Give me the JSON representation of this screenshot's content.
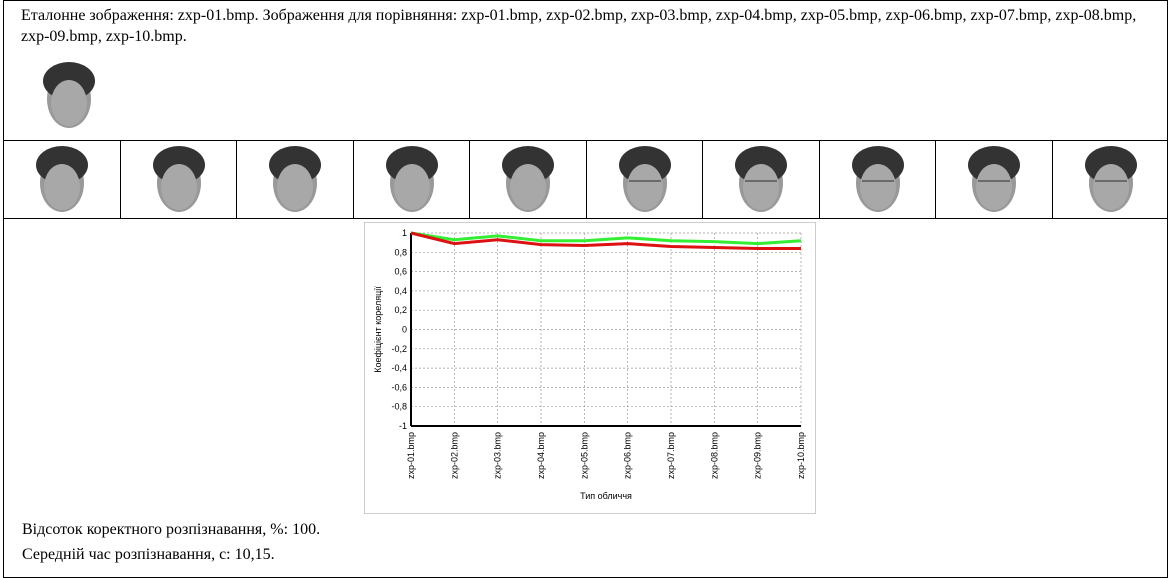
{
  "header": {
    "text": "Еталонне зображення: zxp-01.bmp. Зображення для порівняння: zxp-01.bmp, zxp-02.bmp, zxp-03.bmp, zxp-04.bmp, zxp-05.bmp, zxp-06.bmp, zxp-07.bmp, zxp-08.bmp, zxp-09.bmp, zxp-10.bmp."
  },
  "chart_data": {
    "type": "line",
    "y_label": "Коефіцієнт кореляції",
    "x_label": "Тип обличчя",
    "categories": [
      "zxp-01.bmp",
      "zxp-02.bmp",
      "zxp-03.bmp",
      "zxp-04.bmp",
      "zxp-05.bmp",
      "zxp-06.bmp",
      "zxp-07.bmp",
      "zxp-08.bmp",
      "zxp-09.bmp",
      "zxp-10.bmp"
    ],
    "series": [
      {
        "color": "#33ee33",
        "values": [
          1,
          0.93,
          0.97,
          0.92,
          0.92,
          0.95,
          0.92,
          0.91,
          0.89,
          0.92
        ]
      },
      {
        "color": "#dd1111",
        "values": [
          1,
          0.89,
          0.93,
          0.88,
          0.87,
          0.89,
          0.86,
          0.85,
          0.84,
          0.84
        ]
      }
    ],
    "ylim": [
      -1,
      1
    ],
    "yticks": [
      -1,
      {
        "value": -0.8,
        "label": "-0,8"
      },
      {
        "value": -0.6,
        "label": "-0,6"
      },
      {
        "value": -0.4,
        "label": "-0,4"
      },
      {
        "value": -0.2,
        "label": "-0,2"
      },
      0,
      {
        "value": 0.2,
        "label": "0,2"
      },
      {
        "value": 0.4,
        "label": "0,4"
      },
      {
        "value": 0.6,
        "label": "0,6"
      },
      {
        "value": 0.8,
        "label": "0,8"
      },
      1
    ],
    "grid": true
  },
  "footer": {
    "lines": [
      "Відсоток коректного розпізнавання, %: 100.",
      "Середній час розпізнавання, с: 10,15."
    ]
  }
}
